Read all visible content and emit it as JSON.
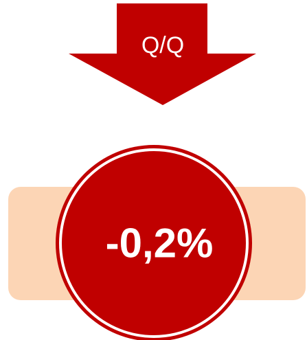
{
  "arrow_label": "Q/Q",
  "value_label": "-0,2%"
}
